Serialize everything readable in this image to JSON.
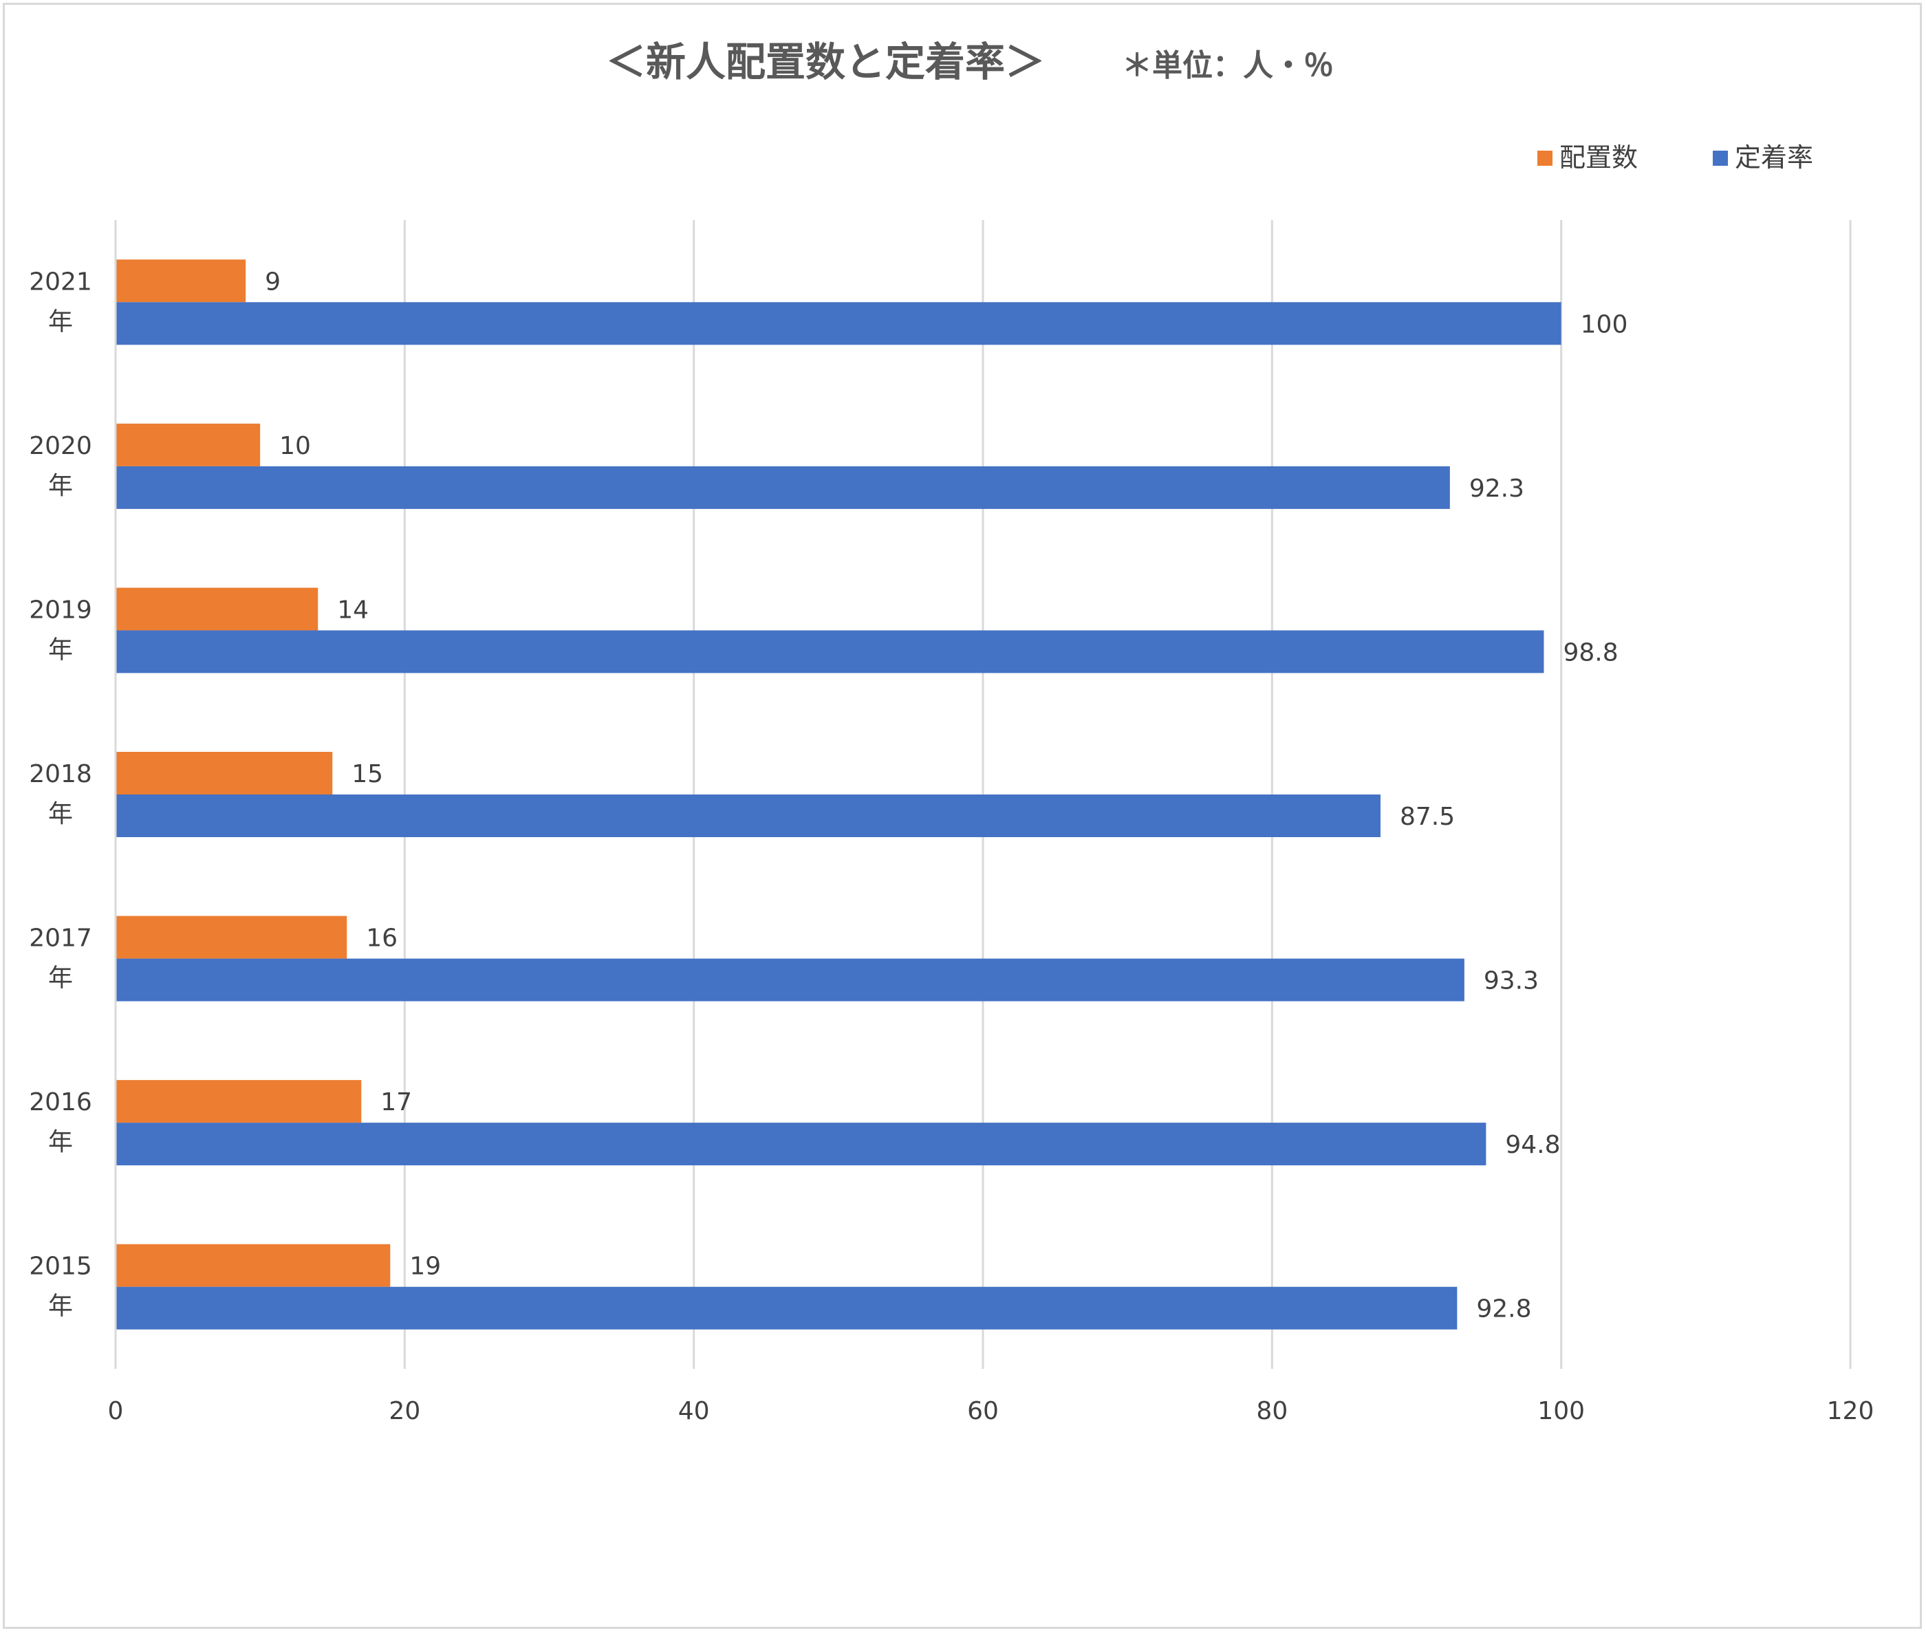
{
  "chart_data": {
    "type": "bar",
    "orientation": "horizontal",
    "title": "＜新人配置数と定着率＞",
    "subtitle": "＊単位：人・％",
    "categories": [
      "2021\n年",
      "2020\n年",
      "2019\n年",
      "2018\n年",
      "2017\n年",
      "2016\n年",
      "2015\n年"
    ],
    "series": [
      {
        "name": "配置数",
        "color": "#ED7D31",
        "values": [
          9,
          10,
          14,
          15,
          16,
          17,
          19
        ]
      },
      {
        "name": "定着率",
        "color": "#4472C4",
        "values": [
          100,
          92.3,
          98.8,
          87.5,
          93.3,
          94.8,
          92.8
        ]
      }
    ],
    "xlim": [
      0,
      120
    ],
    "xticks": [
      0,
      20,
      40,
      60,
      80,
      100,
      120
    ],
    "grid": true,
    "grid_color": "#d9d9d9",
    "legend": "top-right",
    "data_labels": true
  }
}
